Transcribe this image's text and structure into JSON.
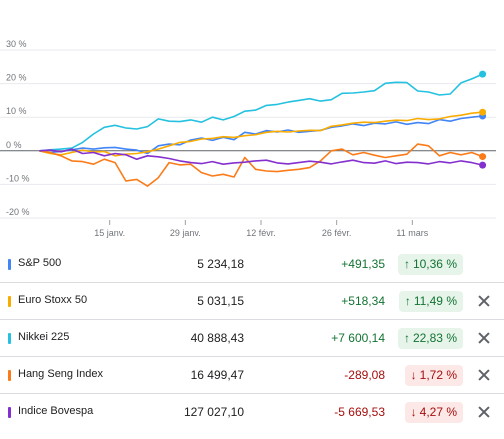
{
  "chart_data": {
    "type": "line",
    "y_ticks": [
      "30 %",
      "20 %",
      "10 %",
      "0 %",
      "-10 %",
      "-20 %"
    ],
    "y_tick_values": [
      30,
      20,
      10,
      0,
      -10,
      -20
    ],
    "ylim": [
      -20,
      30
    ],
    "x_ticks": [
      "15 janv.",
      "29 janv.",
      "12 févr.",
      "26 févr.",
      "11 mars"
    ],
    "x_tick_days": [
      14,
      28,
      42,
      56,
      70
    ],
    "xlim": [
      0,
      84
    ],
    "grid": true,
    "series": [
      {
        "name": "S&P 500",
        "color": "#4285f4",
        "points": [
          [
            1,
            0
          ],
          [
            3,
            -0.5
          ],
          [
            5,
            -0.2
          ],
          [
            7,
            0.3
          ],
          [
            9,
            0.8
          ],
          [
            11,
            0.5
          ],
          [
            13,
            0.9
          ],
          [
            15,
            1.0
          ],
          [
            17,
            0.5
          ],
          [
            19,
            0.2
          ],
          [
            21,
            -0.8
          ],
          [
            23,
            1.5
          ],
          [
            25,
            2.0
          ],
          [
            27,
            1.8
          ],
          [
            29,
            3.2
          ],
          [
            31,
            3.8
          ],
          [
            33,
            3.1
          ],
          [
            35,
            4.0
          ],
          [
            37,
            3.3
          ],
          [
            39,
            5.5
          ],
          [
            41,
            5.0
          ],
          [
            43,
            6.0
          ],
          [
            45,
            5.6
          ],
          [
            47,
            6.2
          ],
          [
            49,
            5.5
          ],
          [
            51,
            5.8
          ],
          [
            53,
            6.1
          ],
          [
            55,
            7.0
          ],
          [
            57,
            7.4
          ],
          [
            59,
            8.0
          ],
          [
            61,
            7.5
          ],
          [
            63,
            8.2
          ],
          [
            65,
            8.0
          ],
          [
            67,
            8.6
          ],
          [
            69,
            7.9
          ],
          [
            71,
            8.4
          ],
          [
            73,
            8.1
          ],
          [
            75,
            9.3
          ],
          [
            77,
            8.8
          ],
          [
            79,
            9.6
          ],
          [
            81,
            10.0
          ],
          [
            83,
            10.36
          ]
        ]
      },
      {
        "name": "Euro Stoxx 50",
        "color": "#f9ab00",
        "points": [
          [
            1,
            0
          ],
          [
            3,
            -0.8
          ],
          [
            5,
            -1.2
          ],
          [
            7,
            -0.5
          ],
          [
            9,
            0.2
          ],
          [
            11,
            -0.4
          ],
          [
            13,
            -0.2
          ],
          [
            15,
            -1.5
          ],
          [
            17,
            -1.0
          ],
          [
            19,
            -0.8
          ],
          [
            21,
            -0.3
          ],
          [
            23,
            0.5
          ],
          [
            25,
            1.5
          ],
          [
            27,
            2.5
          ],
          [
            29,
            2.8
          ],
          [
            31,
            3.5
          ],
          [
            33,
            3.7
          ],
          [
            35,
            4.2
          ],
          [
            37,
            4.0
          ],
          [
            39,
            4.5
          ],
          [
            41,
            4.8
          ],
          [
            43,
            5.5
          ],
          [
            45,
            5.8
          ],
          [
            47,
            5.6
          ],
          [
            49,
            5.9
          ],
          [
            51,
            6.1
          ],
          [
            53,
            6.0
          ],
          [
            55,
            7.3
          ],
          [
            57,
            7.7
          ],
          [
            59,
            8.2
          ],
          [
            61,
            8.5
          ],
          [
            63,
            8.4
          ],
          [
            65,
            8.8
          ],
          [
            67,
            9.1
          ],
          [
            69,
            9.0
          ],
          [
            71,
            9.6
          ],
          [
            73,
            9.3
          ],
          [
            75,
            9.5
          ],
          [
            77,
            10.2
          ],
          [
            79,
            10.6
          ],
          [
            81,
            11.2
          ],
          [
            83,
            11.49
          ]
        ]
      },
      {
        "name": "Nikkei 225",
        "color": "#24c1e0",
        "points": [
          [
            1,
            0
          ],
          [
            3,
            0.3
          ],
          [
            5,
            0.5
          ],
          [
            7,
            0.8
          ],
          [
            9,
            2.5
          ],
          [
            11,
            5.0
          ],
          [
            13,
            7.0
          ],
          [
            15,
            7.6
          ],
          [
            17,
            6.8
          ],
          [
            19,
            6.5
          ],
          [
            21,
            7.2
          ],
          [
            23,
            9.5
          ],
          [
            25,
            8.8
          ],
          [
            27,
            8.7
          ],
          [
            29,
            9.2
          ],
          [
            31,
            8.5
          ],
          [
            33,
            10.0
          ],
          [
            35,
            9.2
          ],
          [
            37,
            10.2
          ],
          [
            39,
            11.8
          ],
          [
            41,
            12.1
          ],
          [
            43,
            13.5
          ],
          [
            45,
            13.8
          ],
          [
            47,
            14.5
          ],
          [
            49,
            15.0
          ],
          [
            51,
            15.5
          ],
          [
            53,
            14.8
          ],
          [
            55,
            15.2
          ],
          [
            57,
            17.1
          ],
          [
            59,
            17.2
          ],
          [
            61,
            17.5
          ],
          [
            63,
            17.9
          ],
          [
            65,
            20.1
          ],
          [
            67,
            20.4
          ],
          [
            69,
            20.3
          ],
          [
            71,
            17.8
          ],
          [
            73,
            17.5
          ],
          [
            75,
            16.6
          ],
          [
            77,
            16.9
          ],
          [
            79,
            20.2
          ],
          [
            81,
            21.4
          ],
          [
            83,
            22.83
          ]
        ]
      },
      {
        "name": "Hang Seng Index",
        "color": "#fa7b17",
        "points": [
          [
            1,
            0
          ],
          [
            3,
            -0.5
          ],
          [
            5,
            -1.5
          ],
          [
            7,
            -3.0
          ],
          [
            9,
            -3.2
          ],
          [
            11,
            -4.0
          ],
          [
            13,
            -2.5
          ],
          [
            15,
            -3.5
          ],
          [
            17,
            -9.0
          ],
          [
            19,
            -8.5
          ],
          [
            21,
            -10.5
          ],
          [
            23,
            -8.0
          ],
          [
            25,
            -3.5
          ],
          [
            27,
            -4.2
          ],
          [
            29,
            -4.0
          ],
          [
            31,
            -6.5
          ],
          [
            33,
            -7.5
          ],
          [
            35,
            -7.0
          ],
          [
            37,
            -7.8
          ],
          [
            39,
            -2.0
          ],
          [
            41,
            -5.5
          ],
          [
            43,
            -6.0
          ],
          [
            45,
            -6.2
          ],
          [
            47,
            -5.8
          ],
          [
            49,
            -5.5
          ],
          [
            51,
            -5.0
          ],
          [
            53,
            -3.0
          ],
          [
            55,
            0
          ],
          [
            57,
            0.5
          ],
          [
            59,
            -1.2
          ],
          [
            61,
            -0.5
          ],
          [
            63,
            -1.3
          ],
          [
            65,
            -2.0
          ],
          [
            67,
            -1.5
          ],
          [
            69,
            -1.0
          ],
          [
            71,
            2.0
          ],
          [
            73,
            1.5
          ],
          [
            75,
            -1.5
          ],
          [
            77,
            -0.5
          ],
          [
            79,
            -1.2
          ],
          [
            81,
            -0.5
          ],
          [
            83,
            -1.72
          ]
        ]
      },
      {
        "name": "Indice Bovespa",
        "color": "#8430ce",
        "points": [
          [
            1,
            0
          ],
          [
            3,
            0.2
          ],
          [
            5,
            -0.3
          ],
          [
            7,
            0.5
          ],
          [
            9,
            -0.8
          ],
          [
            11,
            -0.5
          ],
          [
            13,
            -1.5
          ],
          [
            15,
            -0.8
          ],
          [
            17,
            -1.2
          ],
          [
            19,
            -2.5
          ],
          [
            21,
            -1.5
          ],
          [
            23,
            -1.8
          ],
          [
            25,
            -2.3
          ],
          [
            27,
            -3.0
          ],
          [
            29,
            -3.5
          ],
          [
            31,
            -3.8
          ],
          [
            33,
            -3.2
          ],
          [
            35,
            -4.0
          ],
          [
            37,
            -3.6
          ],
          [
            39,
            -3.4
          ],
          [
            41,
            -3.0
          ],
          [
            43,
            -2.8
          ],
          [
            45,
            -3.6
          ],
          [
            47,
            -3.9
          ],
          [
            49,
            -3.5
          ],
          [
            51,
            -3.1
          ],
          [
            53,
            -3.4
          ],
          [
            55,
            -3.9
          ],
          [
            57,
            -3.3
          ],
          [
            59,
            -2.8
          ],
          [
            61,
            -3.5
          ],
          [
            63,
            -3.7
          ],
          [
            65,
            -3.0
          ],
          [
            67,
            -3.8
          ],
          [
            69,
            -3.4
          ],
          [
            71,
            -3.5
          ],
          [
            73,
            -3.9
          ],
          [
            75,
            -3.2
          ],
          [
            77,
            -3.6
          ],
          [
            79,
            -3.0
          ],
          [
            81,
            -3.5
          ],
          [
            83,
            -4.27
          ]
        ]
      }
    ]
  },
  "table": {
    "rows": [
      {
        "name": "S&P 500",
        "value": "5 234,18",
        "change": "+491,35",
        "pct": "10,36 %",
        "direction": "up",
        "color": "#4285f4",
        "removable": false
      },
      {
        "name": "Euro Stoxx 50",
        "value": "5 031,15",
        "change": "+518,34",
        "pct": "11,49 %",
        "direction": "up",
        "color": "#f9ab00",
        "removable": true
      },
      {
        "name": "Nikkei 225",
        "value": "40 888,43",
        "change": "+7 600,14",
        "pct": "22,83 %",
        "direction": "up",
        "color": "#24c1e0",
        "removable": true
      },
      {
        "name": "Hang Seng Index",
        "value": "16 499,47",
        "change": "-289,08",
        "pct": "1,72 %",
        "direction": "down",
        "color": "#fa7b17",
        "removable": true
      },
      {
        "name": "Indice Bovespa",
        "value": "127 027,10",
        "change": "-5 669,53",
        "pct": "4,27 %",
        "direction": "down",
        "color": "#8430ce",
        "removable": true
      }
    ]
  }
}
